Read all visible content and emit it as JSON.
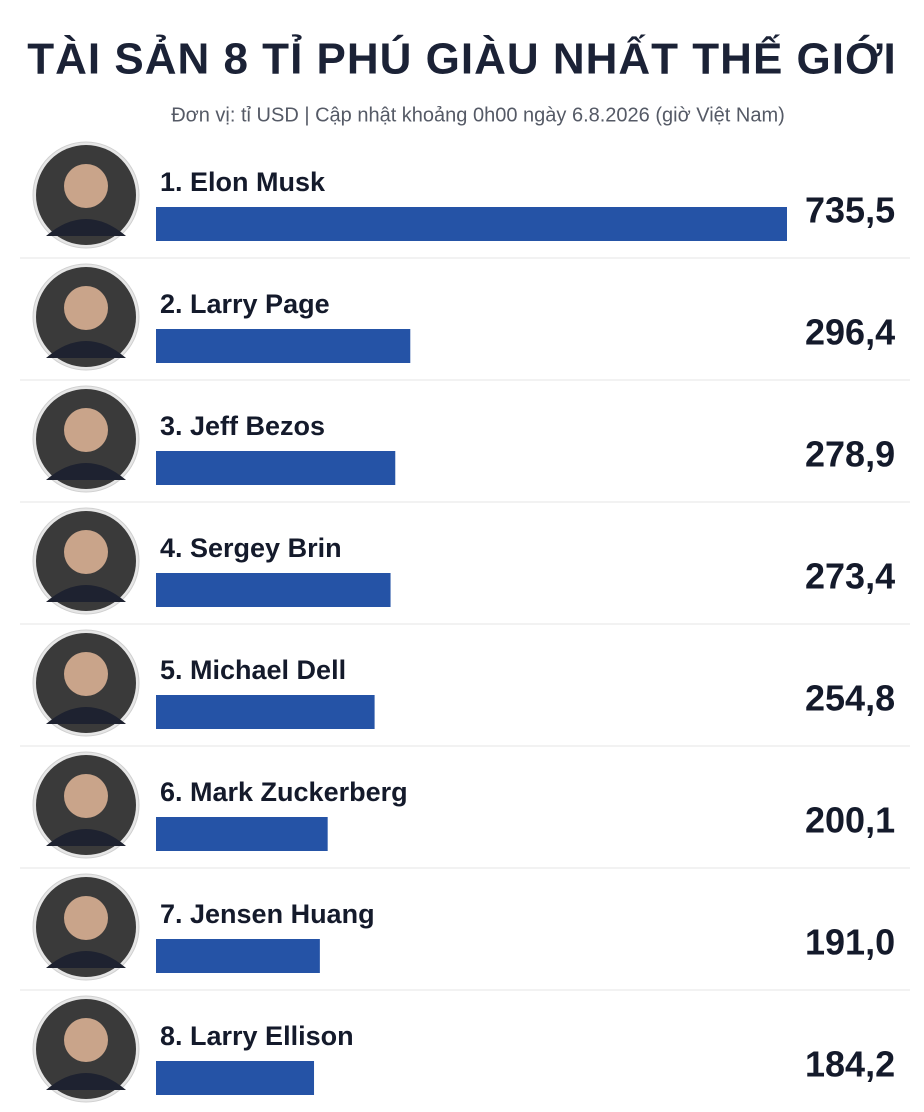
{
  "chart_data": {
    "type": "bar",
    "title": "TÀI SẢN 8 TỈ PHÚ GIÀU NHẤT THẾ GIỚI",
    "subtitle": "Đơn vị: tỉ USD  |  Cập nhật khoảng 0h00 ngày 6.8.2026 (giờ Việt Nam)",
    "categories": [
      "1. Elon Musk",
      "2. Larry Page",
      "3. Jeff Bezos",
      "4. Sergey Brin",
      "5. Michael Dell",
      "6. Mark Zuckerberg",
      "7. Jensen Huang",
      "8. Larry Ellison"
    ],
    "values": [
      735.5,
      296.4,
      278.9,
      273.4,
      254.8,
      200.1,
      191.0,
      184.2
    ],
    "value_labels": [
      "735,5",
      "296,4",
      "278,9",
      "273,4",
      "254,8",
      "200,1",
      "191,0",
      "184,2"
    ],
    "color": "#2553a6"
  }
}
